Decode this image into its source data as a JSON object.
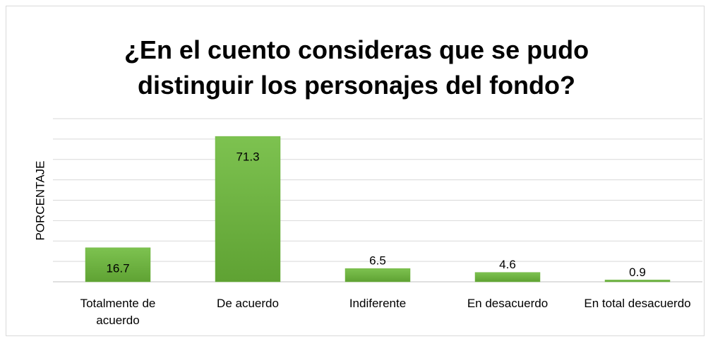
{
  "chart_data": {
    "type": "bar",
    "title": "¿En el cuento consideras que se pudo distinguir los personajes del fondo?",
    "y_label": "PORCENTAJE",
    "categories": [
      "Totalmente de acuerdo",
      "De acuerdo",
      "Indiferente",
      "En desacuerdo",
      "En total desacuerdo"
    ],
    "values": [
      16.7,
      71.3,
      6.5,
      4.6,
      0.9
    ],
    "color": "#6db33f",
    "ylim": [
      0,
      80
    ],
    "yticks": [
      0,
      10,
      20,
      30,
      40,
      50,
      60,
      70,
      80
    ],
    "grid": true,
    "tick_labels": false
  }
}
